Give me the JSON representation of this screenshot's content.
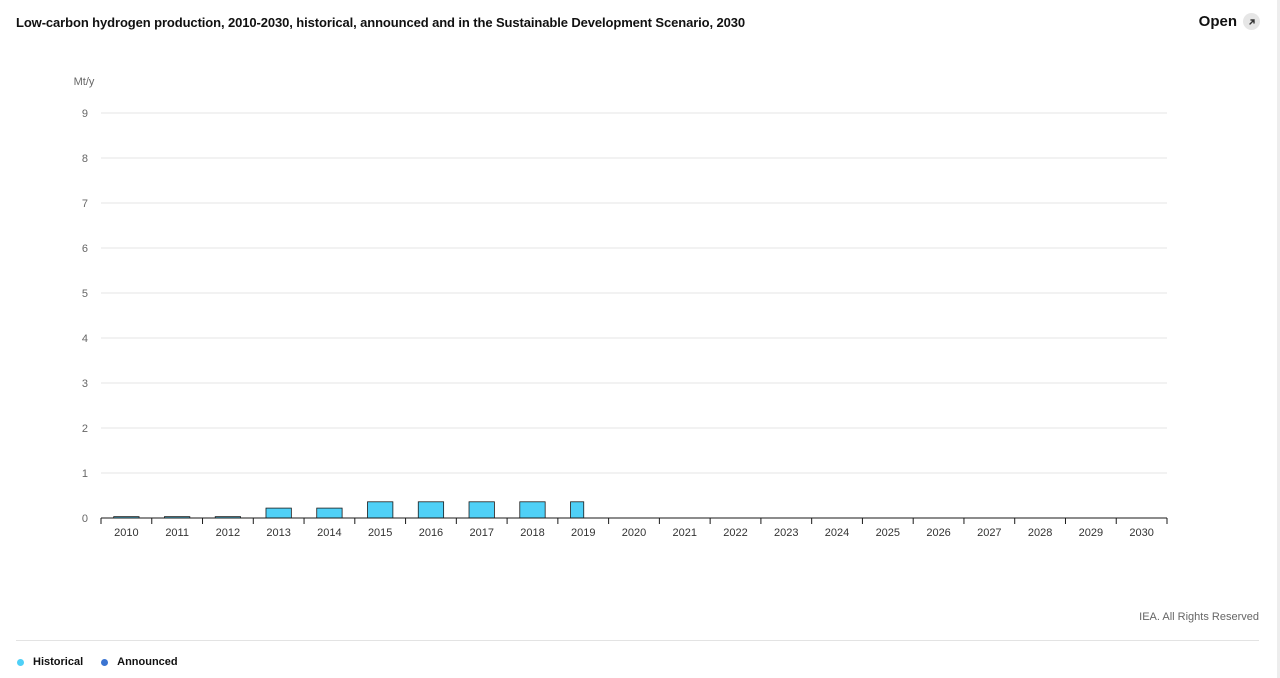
{
  "header": {
    "title": "Low-carbon hydrogen production, 2010-2030, historical, announced and in the Sustainable Development Scenario, 2030",
    "open_label": "Open",
    "open_icon": "external-link-icon"
  },
  "credit": "IEA. All Rights Reserved",
  "colors": {
    "historical": "#4fd0f7",
    "announced": "#3b74d1",
    "bar_stroke": "#1a1a1a",
    "grid": "#e6e6e6",
    "axis": "#1a1a1a",
    "tick_text": "#666666"
  },
  "legend": [
    {
      "label": "Historical",
      "color": "#4fd0f7"
    },
    {
      "label": "Announced",
      "color": "#3b74d1"
    }
  ],
  "chart_data": {
    "type": "bar",
    "title": "Low-carbon hydrogen production, 2010-2030, historical, announced and in the Sustainable Development Scenario, 2030",
    "ylabel": "Mt/y",
    "ylim": [
      0,
      9
    ],
    "yticks": [
      0,
      1,
      2,
      3,
      4,
      5,
      6,
      7,
      8,
      9
    ],
    "grid": true,
    "legend_position": "bottom-left",
    "categories": [
      "2010",
      "2011",
      "2012",
      "2013",
      "2014",
      "2015",
      "2016",
      "2017",
      "2018",
      "2019",
      "2020",
      "2021",
      "2022",
      "2023",
      "2024",
      "2025",
      "2026",
      "2027",
      "2028",
      "2029",
      "2030"
    ],
    "series": [
      {
        "name": "Historical",
        "values": [
          0.03,
          0.03,
          0.03,
          0.22,
          0.22,
          0.36,
          0.36,
          0.36,
          0.36,
          0.36,
          null,
          null,
          null,
          null,
          null,
          null,
          null,
          null,
          null,
          null,
          null
        ]
      },
      {
        "name": "Announced",
        "values": [
          null,
          null,
          null,
          null,
          null,
          null,
          null,
          null,
          null,
          null,
          null,
          null,
          null,
          null,
          null,
          null,
          null,
          null,
          null,
          null,
          null
        ]
      }
    ]
  }
}
